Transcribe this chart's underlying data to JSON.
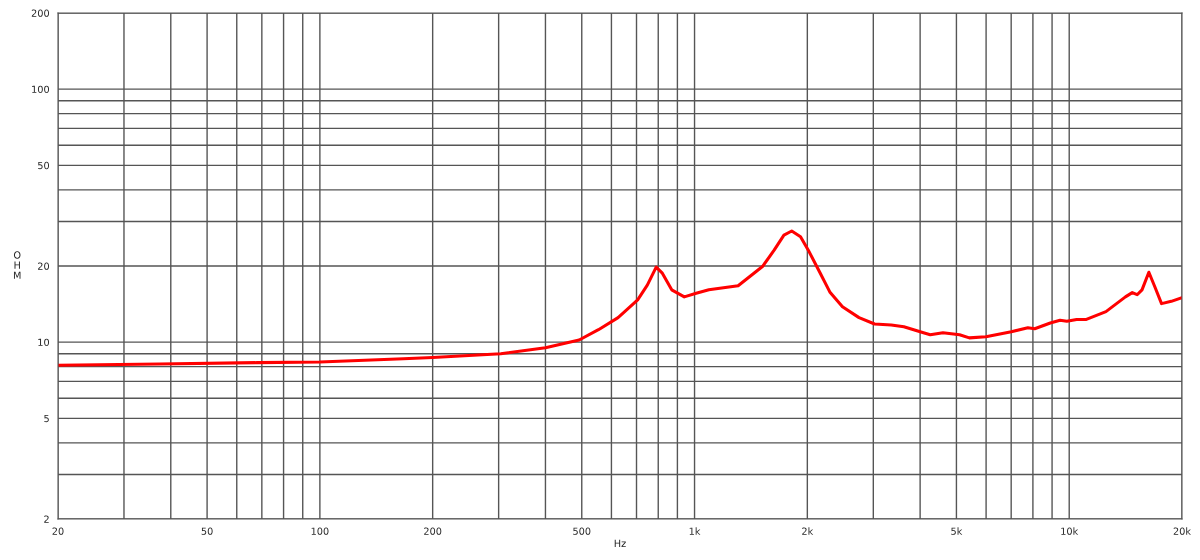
{
  "chart_data": {
    "type": "line",
    "xlabel": "Hz",
    "ylabel": "OHM",
    "log": "xy",
    "grid": true,
    "xlim": [
      20,
      20000
    ],
    "ylim": [
      2,
      200
    ],
    "xticks": [
      20,
      {
        "value": 30,
        "label": null
      },
      {
        "value": 40,
        "label": null
      },
      50,
      {
        "value": 60,
        "label": null
      },
      {
        "value": 70,
        "label": null
      },
      {
        "value": 80,
        "label": null
      },
      {
        "value": 90,
        "label": null
      },
      100,
      200,
      {
        "value": 300,
        "label": null
      },
      {
        "value": 400,
        "label": null
      },
      500,
      {
        "value": 600,
        "label": null
      },
      {
        "value": 700,
        "label": null
      },
      {
        "value": 800,
        "label": null
      },
      {
        "value": 900,
        "label": null
      },
      {
        "value": 1000,
        "label": "1k"
      },
      {
        "value": 2000,
        "label": "2k"
      },
      {
        "value": 3000,
        "label": null
      },
      {
        "value": 4000,
        "label": null
      },
      {
        "value": 5000,
        "label": "5k"
      },
      {
        "value": 6000,
        "label": null
      },
      {
        "value": 7000,
        "label": null
      },
      {
        "value": 8000,
        "label": null
      },
      {
        "value": 9000,
        "label": null
      },
      {
        "value": 10000,
        "label": "10k"
      },
      {
        "value": 20000,
        "label": "20k"
      }
    ],
    "yticks": [
      2,
      {
        "value": 3,
        "label": null
      },
      {
        "value": 4,
        "label": null
      },
      5,
      {
        "value": 6,
        "label": null
      },
      {
        "value": 7,
        "label": null
      },
      {
        "value": 8,
        "label": null
      },
      {
        "value": 9,
        "label": null
      },
      10,
      20,
      {
        "value": 30,
        "label": null
      },
      {
        "value": 40,
        "label": null
      },
      50,
      {
        "value": 60,
        "label": null
      },
      {
        "value": 70,
        "label": null
      },
      {
        "value": 80,
        "label": null
      },
      {
        "value": 90,
        "label": null
      },
      100,
      200
    ],
    "series": [
      {
        "color": "#ff0000",
        "x": [
          20,
          37.3,
          68,
          100,
          167,
          200,
          304,
          400,
          492,
          554,
          625,
          705,
          748,
          790,
          819,
          869,
          939,
          1010,
          1092,
          1307,
          1518,
          1631,
          1732,
          1817,
          1918,
          2012,
          2162,
          2296,
          2482,
          2748,
          3024,
          3350,
          3620,
          4083,
          4258,
          4603,
          5098,
          5413,
          5993,
          7006,
          7755,
          8088,
          8902,
          9452,
          9858,
          10468,
          11112,
          12534,
          14126,
          14732,
          15182,
          15642,
          16314,
          16912,
          17636,
          18726,
          20000
        ],
        "values": [
          8.1,
          8.2,
          8.3,
          8.35,
          8.6,
          8.7,
          9.0,
          9.5,
          10.2,
          11.2,
          12.5,
          14.7,
          16.8,
          19.8,
          18.8,
          16.1,
          15.1,
          15.6,
          16.1,
          16.7,
          19.9,
          23.1,
          26.5,
          27.5,
          26.1,
          23.1,
          18.8,
          15.8,
          13.8,
          12.5,
          11.8,
          11.7,
          11.5,
          10.9,
          10.7,
          10.9,
          10.7,
          10.4,
          10.5,
          11.0,
          11.4,
          11.3,
          11.9,
          12.2,
          12.1,
          12.3,
          12.3,
          13.2,
          15.1,
          15.7,
          15.4,
          16.1,
          18.9,
          16.6,
          14.2,
          14.5,
          15.0
        ]
      }
    ]
  }
}
